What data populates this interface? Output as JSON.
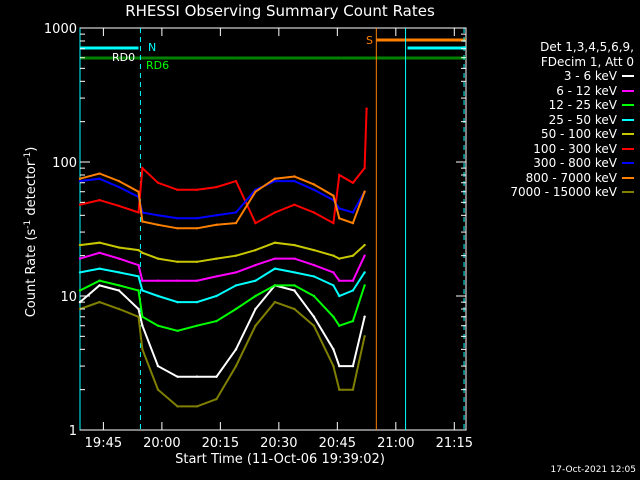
{
  "chart_data": {
    "type": "line",
    "title": "RHESSI Observing Summary Count Rates",
    "xlabel": "Start Time (11-Oct-06 19:39:02)",
    "ylabel_main": "Count Rate (s",
    "ylabel_sup1": "-1",
    "ylabel_mid": " detector",
    "ylabel_sup2": "-1",
    "ylabel_end": ")",
    "x_unit": "minutes since 19:39:02",
    "xlim": [
      0,
      99
    ],
    "ylim": [
      1,
      1000
    ],
    "y_scale": "log",
    "x_ticks": [
      {
        "label": "19:45",
        "value": 6
      },
      {
        "label": "20:00",
        "value": 21
      },
      {
        "label": "20:15",
        "value": 36
      },
      {
        "label": "20:30",
        "value": 51
      },
      {
        "label": "20:45",
        "value": 66
      },
      {
        "label": "21:00",
        "value": 81
      },
      {
        "label": "21:15",
        "value": 96
      }
    ],
    "y_ticks": [
      {
        "label": "1",
        "value": 1
      },
      {
        "label": "10",
        "value": 10
      },
      {
        "label": "100",
        "value": 100
      },
      {
        "label": "1000",
        "value": 1000
      }
    ],
    "legend_header": [
      "Det 1,3,4,5,6,9,",
      "FDecim 1, Att 0"
    ],
    "legend_placement": "right",
    "grid": false,
    "series": [
      {
        "name": "3 - 6 keV",
        "color": "#ffffff",
        "x": [
          0,
          5,
          10,
          15,
          16,
          20,
          25,
          30,
          35,
          40,
          45,
          50,
          55,
          60,
          65,
          66.5,
          70,
          73
        ],
        "y": [
          9,
          12,
          11,
          8,
          6,
          3,
          2.5,
          2.5,
          2.5,
          4,
          8,
          12,
          11,
          7,
          4,
          3,
          3,
          7
        ]
      },
      {
        "name": "6 - 12 keV",
        "color": "#ff00ff",
        "x": [
          0,
          5,
          10,
          15,
          16,
          20,
          25,
          30,
          35,
          40,
          45,
          50,
          55,
          60,
          65,
          66.5,
          70,
          73
        ],
        "y": [
          19,
          21,
          19,
          17,
          13,
          13,
          13,
          13,
          14,
          15,
          17,
          19,
          19,
          17,
          15,
          13,
          13,
          20
        ]
      },
      {
        "name": "12 - 25 keV",
        "color": "#00ff00",
        "x": [
          0,
          5,
          10,
          15,
          16,
          20,
          25,
          30,
          35,
          40,
          45,
          50,
          55,
          60,
          65,
          66.5,
          70,
          73
        ],
        "y": [
          11,
          13,
          12,
          11,
          7,
          6,
          5.5,
          6,
          6.5,
          8,
          10,
          12,
          12,
          10,
          7,
          6,
          6.5,
          12
        ]
      },
      {
        "name": "25 - 50 keV",
        "color": "#00ffff",
        "x": [
          0,
          5,
          10,
          15,
          16,
          20,
          25,
          30,
          35,
          40,
          45,
          50,
          55,
          60,
          65,
          66.5,
          70,
          73
        ],
        "y": [
          15,
          16,
          15,
          14,
          11,
          10,
          9,
          9,
          10,
          12,
          13,
          16,
          15,
          14,
          12,
          10,
          11,
          15
        ]
      },
      {
        "name": "50 - 100 keV",
        "color": "#c8c800",
        "x": [
          0,
          5,
          10,
          15,
          16,
          20,
          25,
          30,
          35,
          40,
          45,
          50,
          55,
          60,
          65,
          66.5,
          70,
          73
        ],
        "y": [
          24,
          25,
          23,
          22,
          21,
          19,
          18,
          18,
          19,
          20,
          22,
          25,
          24,
          22,
          20,
          19,
          20,
          24
        ]
      },
      {
        "name": "100 - 300 keV",
        "color": "#ff0000",
        "x": [
          0,
          5,
          10,
          15,
          16,
          20,
          25,
          30,
          35,
          40,
          45,
          50,
          55,
          60,
          65,
          66.5,
          70,
          73,
          73.5
        ],
        "y": [
          48,
          52,
          47,
          42,
          90,
          70,
          62,
          62,
          65,
          72,
          35,
          42,
          48,
          42,
          35,
          80,
          70,
          90,
          250
        ]
      },
      {
        "name": "300 - 800 keV",
        "color": "#0000ff",
        "x": [
          0,
          5,
          10,
          15,
          16,
          20,
          25,
          30,
          35,
          40,
          45,
          50,
          55,
          60,
          65,
          66.5,
          70,
          73
        ],
        "y": [
          72,
          75,
          65,
          55,
          42,
          40,
          38,
          38,
          40,
          42,
          62,
          72,
          72,
          62,
          52,
          45,
          42,
          60
        ]
      },
      {
        "name": "800 - 7000 keV",
        "color": "#ff8000",
        "x": [
          0,
          5,
          10,
          15,
          16,
          20,
          25,
          30,
          35,
          40,
          45,
          50,
          55,
          60,
          65,
          66.5,
          70,
          73
        ],
        "y": [
          75,
          82,
          72,
          60,
          36,
          34,
          32,
          32,
          34,
          35,
          60,
          75,
          78,
          68,
          56,
          38,
          35,
          60
        ]
      },
      {
        "name": "7000 - 15000 keV",
        "color": "#808000",
        "x": [
          0,
          5,
          10,
          15,
          16,
          20,
          25,
          30,
          35,
          40,
          45,
          50,
          55,
          60,
          65,
          66.5,
          70,
          73
        ],
        "y": [
          8,
          9,
          8,
          7,
          4,
          2,
          1.5,
          1.5,
          1.7,
          3,
          6,
          9,
          8,
          6,
          3,
          2,
          2,
          5
        ]
      }
    ],
    "annotations": [
      {
        "text": "N",
        "color": "#00ffff"
      },
      {
        "text": "RD0",
        "color": "#ffffff"
      },
      {
        "text": "RD6",
        "color": "#00ff00"
      },
      {
        "text": "S",
        "color": "#ff8000"
      }
    ],
    "state_bars": [
      {
        "label": "N",
        "color": "#00ffff",
        "segments": [
          [
            0,
            15
          ],
          [
            84,
            99
          ]
        ]
      },
      {
        "label": "RD0",
        "color": "#ffffff",
        "segments": []
      },
      {
        "label": "RD6",
        "color": "#008000",
        "segments": [
          [
            0,
            15
          ],
          [
            15,
            40
          ],
          [
            40,
            67
          ],
          [
            67,
            99
          ]
        ]
      },
      {
        "label": "S",
        "color": "#ff8000",
        "segments": [
          [
            76,
            99
          ]
        ]
      }
    ],
    "vertical_markers": [
      {
        "x": 0,
        "color": "#00ffff",
        "style": "solid"
      },
      {
        "x": 15.5,
        "color": "#00ffff",
        "style": "dashed"
      },
      {
        "x": 76,
        "color": "#ff8000",
        "style": "solid"
      },
      {
        "x": 83.5,
        "color": "#00ffff",
        "style": "solid"
      },
      {
        "x": 98.5,
        "color": "#00ffff",
        "style": "dashed"
      }
    ]
  },
  "timestamp": "17-Oct-2021 12:05"
}
